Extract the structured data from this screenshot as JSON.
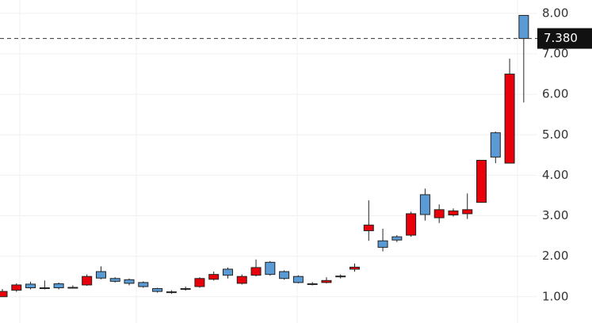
{
  "chart_data": {
    "type": "candlestick",
    "open": [
      1.0,
      1.16,
      1.31,
      1.22,
      1.32,
      1.23,
      1.29,
      1.62,
      1.45,
      1.42,
      1.35,
      1.2,
      1.12,
      1.2,
      1.25,
      1.43,
      1.68,
      1.33,
      1.53,
      1.85,
      1.62,
      1.5,
      1.32,
      1.35,
      1.49,
      1.68,
      2.63,
      2.38,
      2.48,
      2.52,
      3.52,
      2.95,
      3.02,
      3.05,
      3.33,
      5.05,
      4.3,
      7.95
    ],
    "high": [
      1.19,
      1.33,
      1.37,
      1.4,
      1.35,
      1.28,
      1.55,
      1.75,
      1.48,
      1.45,
      1.38,
      1.22,
      1.16,
      1.25,
      1.48,
      1.62,
      1.72,
      1.55,
      1.92,
      1.88,
      1.65,
      1.53,
      1.36,
      1.48,
      1.55,
      1.82,
      3.38,
      2.68,
      2.52,
      3.1,
      3.67,
      3.28,
      3.18,
      3.55,
      4.37,
      5.08,
      6.88,
      7.95
    ],
    "low": [
      1.0,
      1.12,
      1.18,
      1.18,
      1.18,
      1.2,
      1.27,
      1.43,
      1.35,
      1.28,
      1.22,
      1.1,
      1.07,
      1.15,
      1.22,
      1.4,
      1.45,
      1.3,
      1.5,
      1.52,
      1.42,
      1.33,
      1.28,
      1.33,
      1.45,
      1.62,
      2.38,
      2.12,
      2.35,
      2.48,
      2.88,
      2.82,
      2.98,
      2.92,
      3.33,
      4.3,
      4.3,
      5.8
    ],
    "close": [
      1.13,
      1.29,
      1.22,
      1.21,
      1.22,
      1.22,
      1.5,
      1.46,
      1.38,
      1.33,
      1.25,
      1.13,
      1.11,
      1.19,
      1.45,
      1.55,
      1.53,
      1.5,
      1.72,
      1.55,
      1.45,
      1.35,
      1.31,
      1.4,
      1.51,
      1.73,
      2.77,
      2.22,
      2.4,
      3.05,
      3.03,
      3.15,
      3.12,
      3.15,
      4.37,
      4.45,
      6.5,
      7.38
    ],
    "up_color": "#e8000b",
    "down_color": "#5b9bd5",
    "ylim": [
      0.35,
      8.33
    ],
    "yticks": [
      {
        "value": 1,
        "label": "1.00"
      },
      {
        "value": 2,
        "label": "2.00"
      },
      {
        "value": 3,
        "label": "3.00"
      },
      {
        "value": 4,
        "label": "4.00"
      },
      {
        "value": 5,
        "label": "5.00"
      },
      {
        "value": 6,
        "label": "6.00"
      },
      {
        "value": 7,
        "label": "7.00"
      },
      {
        "value": 8,
        "label": "8.00"
      }
    ],
    "last_price": {
      "value": 7.38,
      "label": "7.380"
    },
    "grid": true
  }
}
